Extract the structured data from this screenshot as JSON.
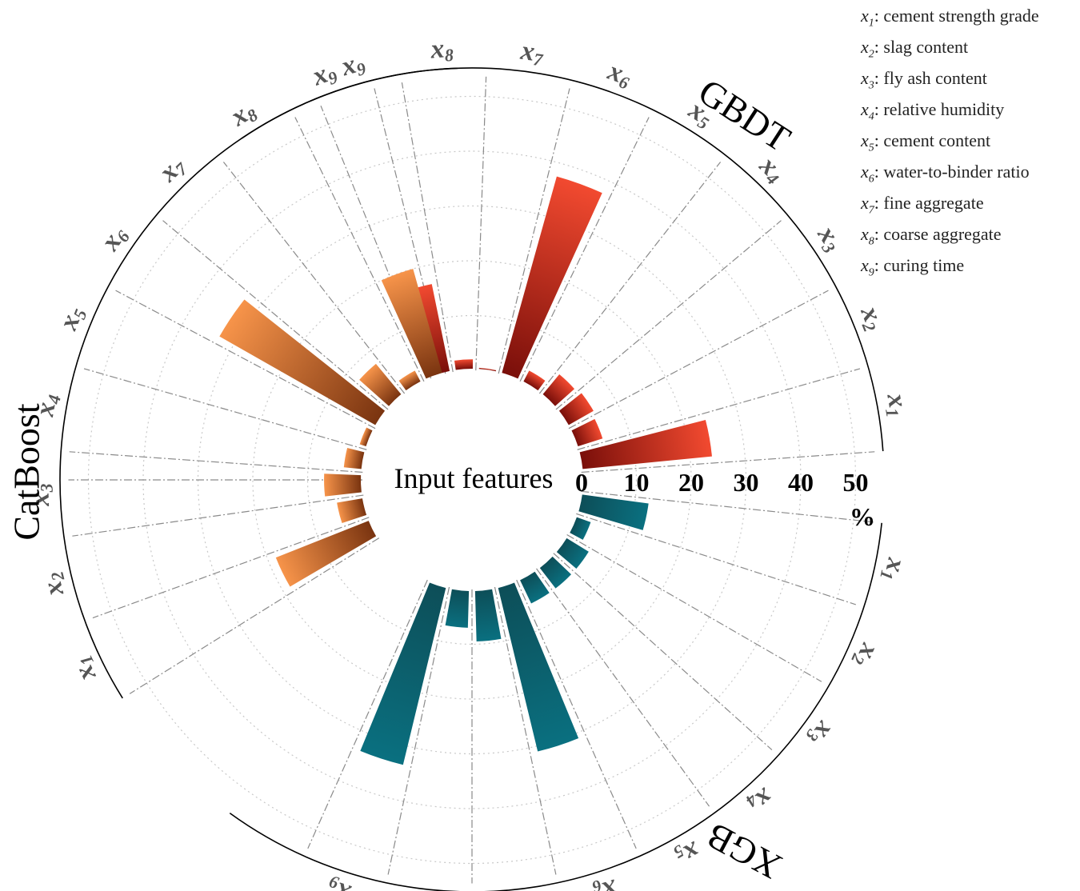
{
  "chart_data": {
    "type": "radial-bar",
    "center_label": "Input features",
    "unit": "%",
    "radial_ticks": [
      "0",
      "10",
      "20",
      "30",
      "40",
      "50"
    ],
    "rlim": [
      0,
      50
    ],
    "categories": [
      "x1",
      "x2",
      "x3",
      "x4",
      "x5",
      "x6",
      "x7",
      "x8",
      "x9"
    ],
    "series": [
      {
        "name": "GBDT",
        "color_dark": "#7a0f0a",
        "color_light": "#f24a30",
        "values": [
          24.0,
          5.0,
          5.5,
          5.0,
          2.5,
          37.5,
          0.5,
          2.0,
          16.5
        ]
      },
      {
        "name": "XGB",
        "color_dark": "#0d4e58",
        "color_light": "#0a7080",
        "values": [
          12.5,
          3.0,
          5.0,
          5.0,
          5.0,
          31.0,
          9.5,
          7.0,
          33.5
        ]
      },
      {
        "name": "CatBoost",
        "color_dark": "#7a3410",
        "color_light": "#f7944a",
        "values": [
          18.5,
          5.0,
          7.0,
          3.5,
          1.5,
          33.0,
          7.5,
          2.5,
          20.0
        ]
      }
    ]
  },
  "legend": [
    {
      "sym": "x",
      "sub": "1",
      "text": ": cement strength grade"
    },
    {
      "sym": "x",
      "sub": "2",
      "text": ": slag content"
    },
    {
      "sym": "x",
      "sub": "3",
      "text": ": fly ash content"
    },
    {
      "sym": "x",
      "sub": "4",
      "text": ": relative humidity"
    },
    {
      "sym": "x",
      "sub": "5",
      "text": ": cement content"
    },
    {
      "sym": "x",
      "sub": "6",
      "text": ": water-to-binder ratio"
    },
    {
      "sym": "x",
      "sub": "7",
      "text": ": fine aggregate"
    },
    {
      "sym": "x",
      "sub": "8",
      "text": ": coarse aggregate"
    },
    {
      "sym": "x",
      "sub": "9",
      "text": ": curing time"
    }
  ]
}
